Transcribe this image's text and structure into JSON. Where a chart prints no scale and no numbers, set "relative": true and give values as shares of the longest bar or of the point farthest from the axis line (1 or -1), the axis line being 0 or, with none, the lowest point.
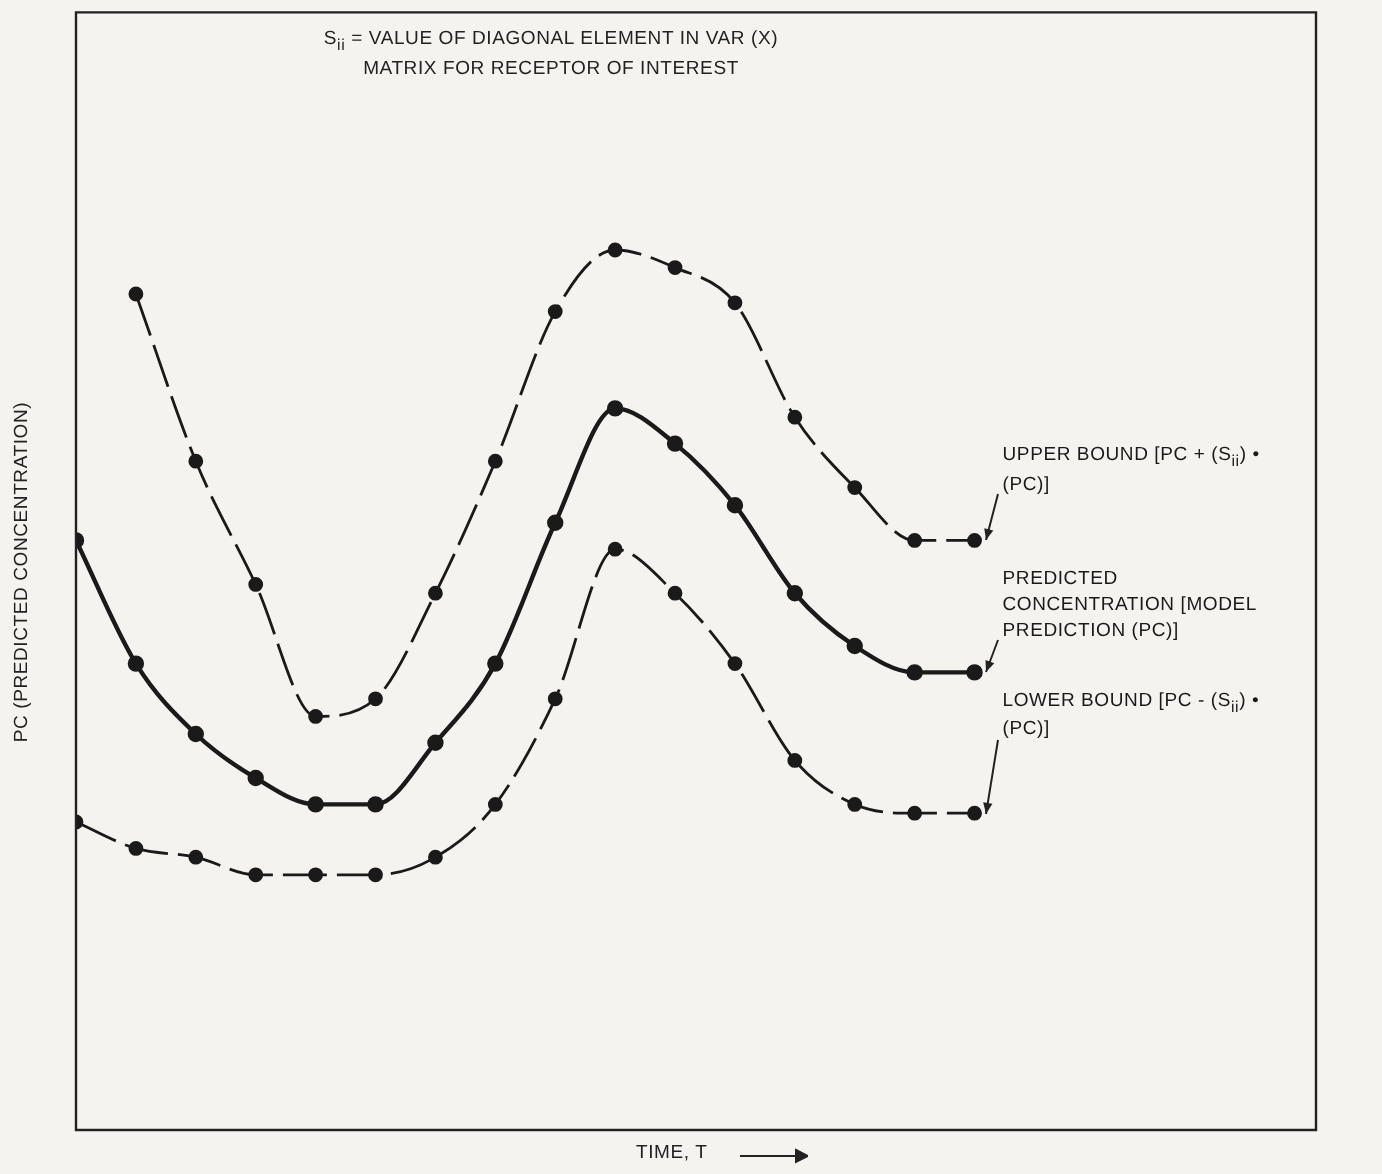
{
  "chart_data": {
    "type": "line",
    "relative": true,
    "title": "S$_{ii}$ = VALUE OF DIAGONAL ELEMENT IN VAR (X) MATRIX FOR RECEPTOR OF INTEREST",
    "xlabel": "TIME, T",
    "ylabel": "PC (PREDICTED CONCENTRATION)",
    "marker": "circle",
    "categories": [
      null,
      null,
      null,
      null,
      null,
      null,
      null,
      null,
      null,
      null,
      null,
      null,
      null,
      null,
      null,
      null
    ],
    "series": [
      {
        "name": "UPPER BOUND [PC + (S$_{ii}$) • (PC)]",
        "color": "#1a1a1a",
        "line_style": "dashed",
        "values": [
          null,
          0.95,
          0.76,
          0.62,
          0.47,
          0.49,
          0.61,
          0.76,
          0.93,
          1,
          0.98,
          0.94,
          0.81,
          0.73,
          0.67,
          0.67
        ]
      },
      {
        "name": "PREDICTED CONCENTRATION [MODEL PREDICTION (PC)]",
        "color": "#1a1a1a",
        "line_style": "solid",
        "values": [
          0.67,
          0.53,
          0.45,
          0.4,
          0.37,
          0.37,
          0.44,
          0.53,
          0.69,
          0.82,
          0.78,
          0.71,
          0.61,
          0.55,
          0.52,
          0.52
        ]
      },
      {
        "name": "LOWER BOUND [PC - (S$_{ii}$) • (PC)]",
        "color": "#1a1a1a",
        "line_style": "dashed",
        "values": [
          0.35,
          0.32,
          0.31,
          0.29,
          0.29,
          0.29,
          0.31,
          0.37,
          0.49,
          0.66,
          0.61,
          0.53,
          0.42,
          0.37,
          0.36,
          0.36
        ]
      }
    ]
  }
}
